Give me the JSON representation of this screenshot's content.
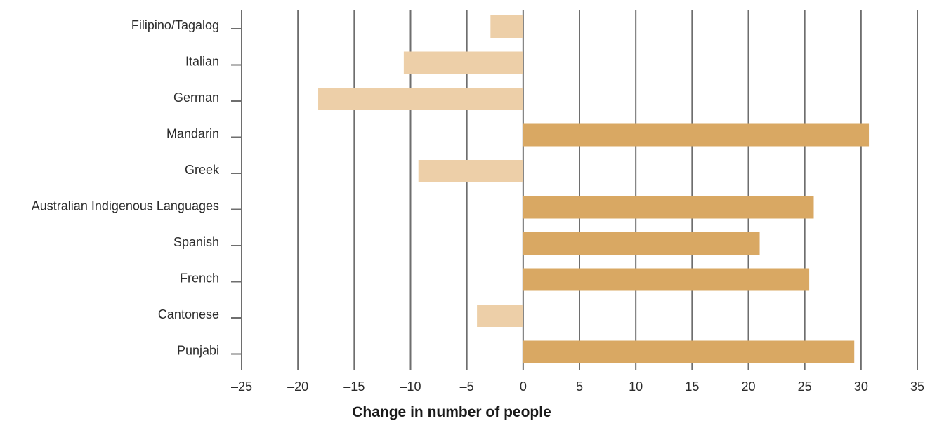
{
  "chart_data": {
    "type": "bar",
    "orientation": "horizontal",
    "categories": [
      "Filipino/Tagalog",
      "Italian",
      "German",
      "Mandarin",
      "Greek",
      "Australian Indigenous Languages",
      "Spanish",
      "French",
      "Cantonese",
      "Punjabi"
    ],
    "values": [
      -2.9,
      -10.6,
      -18.2,
      30.7,
      -9.3,
      25.8,
      21.0,
      25.4,
      -4.1,
      29.4
    ],
    "xlabel": "Change in number of people",
    "ylabel": "",
    "xlim": [
      -25,
      35
    ],
    "xticks": [
      -25,
      -20,
      -15,
      -10,
      -5,
      0,
      5,
      10,
      15,
      20,
      25,
      30,
      35
    ],
    "xtick_labels": [
      "–25",
      "–20",
      "–15",
      "–10",
      "–5",
      "0",
      "5",
      "10",
      "15",
      "20",
      "25",
      "30",
      "35"
    ],
    "grid": "vertical",
    "colors": {
      "positive": "#D9A863",
      "negative": "#EDCFA8",
      "grid": "#6E6E6E",
      "text": "#2B2B2B"
    }
  }
}
